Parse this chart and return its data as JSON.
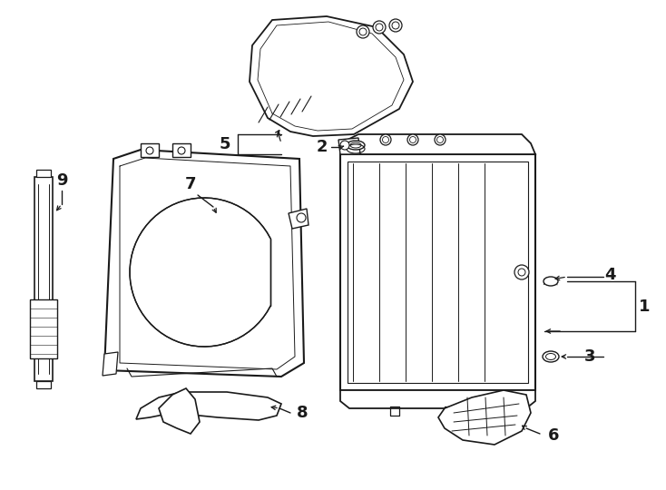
{
  "background_color": "#ffffff",
  "line_color": "#1a1a1a",
  "label_color": "#1a1a1a",
  "figsize": [
    7.34,
    5.4
  ],
  "dpi": 100
}
